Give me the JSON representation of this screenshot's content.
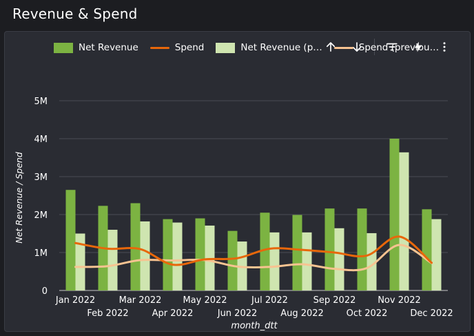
{
  "header": {
    "title": "Revenue & Spend"
  },
  "toolbar": {
    "icons": [
      "arrow-up-icon",
      "arrow-down-icon",
      "filter-icon",
      "bolt-icon",
      "more-vert-icon"
    ]
  },
  "colors": {
    "net_revenue": "#7cb342",
    "spend": "#e8670a",
    "net_revenue_prev": "#cfe5b0",
    "spend_prev": "#f7c391",
    "grid": "#4a4d55",
    "axis_text": "#ffffff"
  },
  "legend": {
    "net_revenue": "Net Revenue",
    "spend": "Spend",
    "net_revenue_prev": "Net Revenue (p…",
    "spend_prev": "Spend (previou…"
  },
  "chart_data": {
    "type": "bar",
    "xlabel": "month_dtt",
    "ylabel": "Net Revenue  / Spend",
    "ylim": [
      0,
      5000000
    ],
    "yticks": [
      0,
      1000000,
      2000000,
      3000000,
      4000000,
      5000000
    ],
    "ytick_labels": [
      "0",
      "1M",
      "2M",
      "3M",
      "4M",
      "5M"
    ],
    "categories": [
      "Jan 2022",
      "Feb 2022",
      "Mar 2022",
      "Apr 2022",
      "May 2022",
      "Jun 2022",
      "Jul 2022",
      "Aug 2022",
      "Sep 2022",
      "Oct 2022",
      "Nov 2022",
      "Dec 2022"
    ],
    "series": [
      {
        "name": "Net Revenue",
        "kind": "bar",
        "values": [
          2650000,
          2230000,
          2300000,
          1880000,
          1900000,
          1570000,
          2050000,
          1990000,
          2160000,
          2160000,
          4000000,
          2140000
        ]
      },
      {
        "name": "Net Revenue (p…",
        "kind": "bar",
        "values": [
          1500000,
          1600000,
          1820000,
          1790000,
          1710000,
          1290000,
          1530000,
          1530000,
          1640000,
          1510000,
          3640000,
          1880000
        ]
      },
      {
        "name": "Spend",
        "kind": "line",
        "values": [
          1250000,
          1100000,
          1090000,
          680000,
          820000,
          850000,
          1100000,
          1070000,
          1000000,
          920000,
          1420000,
          730000
        ]
      },
      {
        "name": "Spend (previou…",
        "kind": "line",
        "values": [
          620000,
          640000,
          800000,
          790000,
          800000,
          630000,
          620000,
          690000,
          570000,
          590000,
          1200000,
          720000
        ]
      }
    ]
  }
}
